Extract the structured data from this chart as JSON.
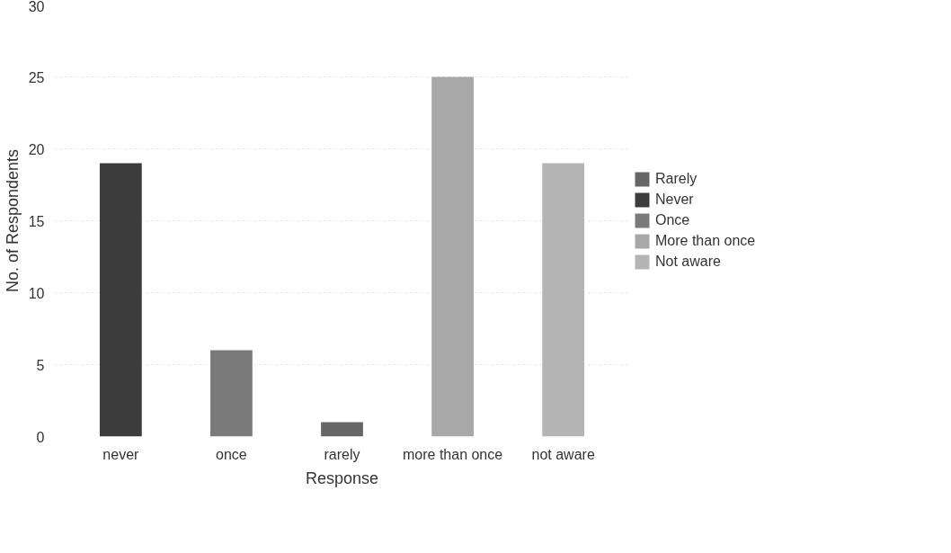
{
  "chart_data": {
    "type": "bar",
    "xlabel": "Response",
    "ylabel": "No. of Respondents",
    "categories": [
      "never",
      "once",
      "rarely",
      "more than once",
      "not aware"
    ],
    "series": [
      {
        "name": "Rarely",
        "color": "#666666",
        "values": [
          null,
          null,
          1,
          null,
          null
        ]
      },
      {
        "name": "Never",
        "color": "#3c3c3c",
        "values": [
          19,
          null,
          null,
          null,
          null
        ]
      },
      {
        "name": "Once",
        "color": "#7a7a7a",
        "values": [
          null,
          6,
          null,
          null,
          null
        ]
      },
      {
        "name": "More than once",
        "color": "#a8a8a8",
        "values": [
          null,
          null,
          null,
          25,
          null
        ]
      },
      {
        "name": "Not aware",
        "color": "#b4b4b4",
        "values": [
          null,
          null,
          null,
          null,
          19
        ]
      }
    ],
    "ylim": [
      0,
      30
    ],
    "yticks": [
      0,
      5,
      10,
      15,
      20,
      25,
      30
    ],
    "grid": "y",
    "legend": "right"
  }
}
